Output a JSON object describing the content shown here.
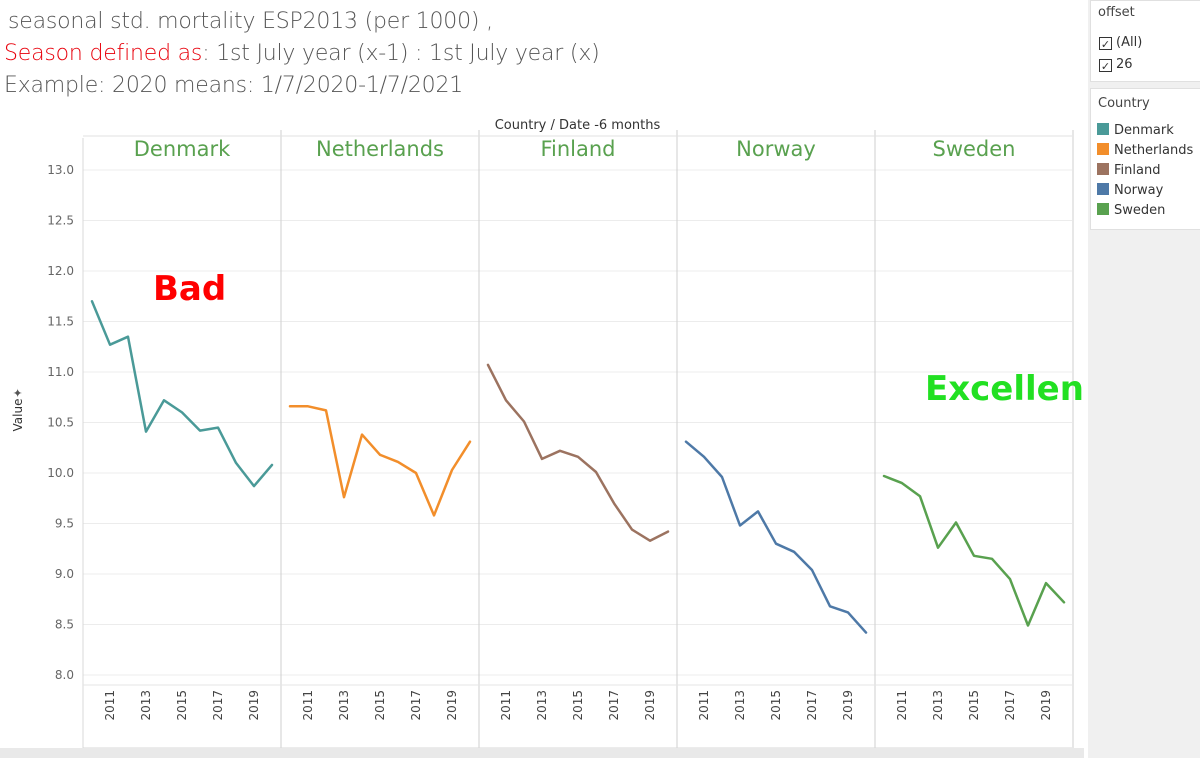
{
  "title": {
    "line1": "seasonal std. mortality ESP2013  (per 1000) ,",
    "line2_red": "Season defined as",
    "line2_rest": ": 1st July year (x-1) : 1st July  year (x)",
    "line3": "Example: 2020 means: 1/7/2020-1/7/2021"
  },
  "filter": {
    "title": "offset",
    "options": [
      {
        "label": "(All)",
        "checked": true
      },
      {
        "label": "26",
        "checked": true
      }
    ]
  },
  "legend": {
    "title": "Country",
    "items": [
      {
        "label": "Denmark",
        "color": "#4a9a98"
      },
      {
        "label": "Netherlands",
        "color": "#f28e2b"
      },
      {
        "label": "Finland",
        "color": "#9c7360"
      },
      {
        "label": "Norway",
        "color": "#4e79a7"
      },
      {
        "label": "Sweden",
        "color": "#59a14f"
      }
    ]
  },
  "chart_data": {
    "type": "line",
    "title": "Country / Date -6 months",
    "xlabel": "",
    "ylabel": "Value",
    "ylim": [
      8.0,
      13.0
    ],
    "yticks": [
      "13.0",
      "12.5",
      "12.0",
      "11.5",
      "11.0",
      "10.5",
      "10.0",
      "9.5",
      "9.0",
      "8.5",
      "8.0"
    ],
    "x": [
      2010,
      2011,
      2012,
      2013,
      2014,
      2015,
      2016,
      2017,
      2018,
      2019,
      2020
    ],
    "xtick_labels": [
      "2011",
      "2013",
      "2015",
      "2017",
      "2019"
    ],
    "panel_title_color": "#59a14f",
    "series": [
      {
        "name": "Denmark",
        "color": "#4a9a98",
        "values": [
          11.7,
          11.27,
          11.35,
          10.41,
          10.72,
          10.6,
          10.42,
          10.45,
          10.1,
          9.87,
          10.08
        ]
      },
      {
        "name": "Netherlands",
        "color": "#f28e2b",
        "values": [
          10.66,
          10.66,
          10.62,
          9.76,
          10.38,
          10.18,
          10.11,
          10.0,
          9.58,
          10.03,
          10.31
        ]
      },
      {
        "name": "Finland",
        "color": "#9c7360",
        "values": [
          11.07,
          10.72,
          10.51,
          10.14,
          10.22,
          10.16,
          10.01,
          9.7,
          9.44,
          9.33,
          9.42
        ]
      },
      {
        "name": "Norway",
        "color": "#4e79a7",
        "values": [
          10.31,
          10.16,
          9.96,
          9.48,
          9.62,
          9.3,
          9.22,
          9.04,
          8.68,
          8.62,
          8.42
        ]
      },
      {
        "name": "Sweden",
        "color": "#59a14f",
        "values": [
          9.97,
          9.9,
          9.77,
          9.26,
          9.51,
          9.18,
          9.15,
          8.95,
          8.49,
          8.91,
          8.72
        ]
      }
    ],
    "annotations": [
      {
        "text": "Bad",
        "color": "#ff0000",
        "panel": "Denmark"
      },
      {
        "text": "Excellent.",
        "color": "#22e022",
        "panel": "Sweden"
      }
    ]
  }
}
